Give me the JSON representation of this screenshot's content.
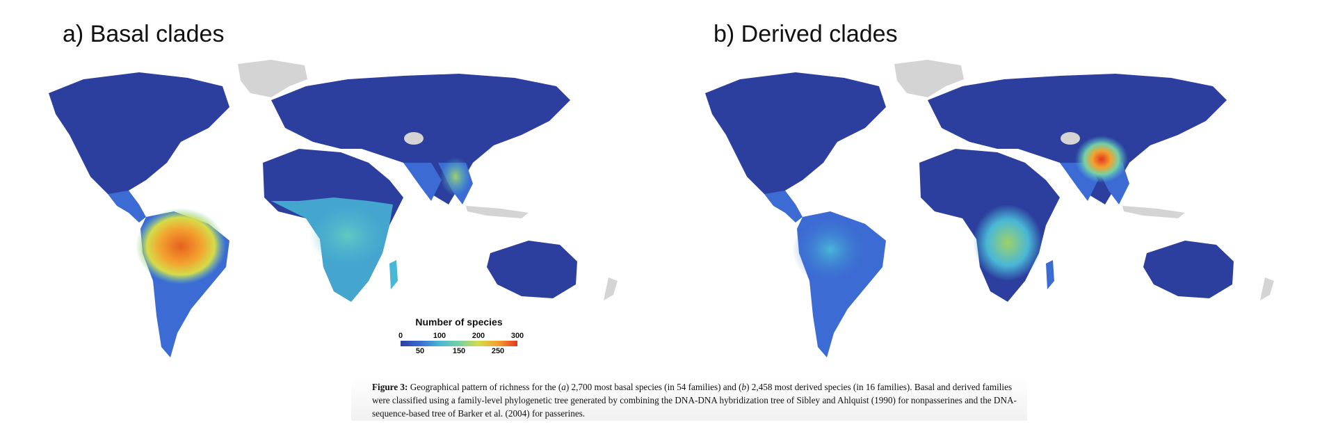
{
  "panels": [
    {
      "label": "a) Basal clades"
    },
    {
      "label": "b) Derived clades"
    }
  ],
  "legend": {
    "title": "Number of species",
    "top_ticks": [
      "0",
      "100",
      "200",
      "300"
    ],
    "bottom_ticks": [
      "50",
      "150",
      "250"
    ]
  },
  "caption": {
    "label": "Figure 3:",
    "p1": " Geographical pattern of richness for the (",
    "a": "a",
    "p2": ") 2,700 most basal species (in 54 families) and (",
    "b": "b",
    "p3": ") 2,458 most derived species (in 16 families). Basal and derived families were classified using a family-level phylogenetic tree generated by combining the DNA-DNA hybridization tree of Sibley and Ahlquist (1990) for nonpasserines and the DNA-sequence-based tree of Barker et al. (2004) for passerines."
  },
  "colors": {
    "ocean": "#ffffff",
    "low": "#2c3f9e",
    "mid_low": "#49b7d6",
    "mid": "#76d1a4",
    "mid_high": "#d5dc4a",
    "high": "#e2361f",
    "ice": "#d4d4d4"
  }
}
